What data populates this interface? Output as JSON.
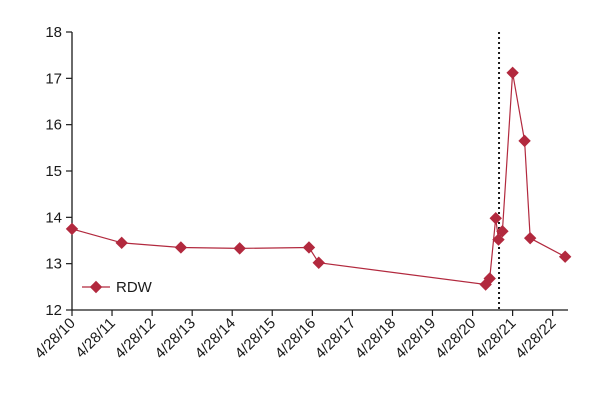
{
  "chart_data": {
    "type": "line",
    "title": "",
    "xlabel": "",
    "ylabel": "",
    "x_axis": {
      "type": "date",
      "min": "2010-04-28",
      "max": "2022-09-15",
      "ticks": [
        {
          "date": "2010-04-28",
          "label": "4/28/10"
        },
        {
          "date": "2011-04-28",
          "label": "4/28/11"
        },
        {
          "date": "2012-04-28",
          "label": "4/28/12"
        },
        {
          "date": "2013-04-28",
          "label": "4/28/13"
        },
        {
          "date": "2014-04-28",
          "label": "4/28/14"
        },
        {
          "date": "2015-04-28",
          "label": "4/28/15"
        },
        {
          "date": "2016-04-28",
          "label": "4/28/16"
        },
        {
          "date": "2017-04-28",
          "label": "4/28/17"
        },
        {
          "date": "2018-04-28",
          "label": "4/28/18"
        },
        {
          "date": "2019-04-28",
          "label": "4/28/19"
        },
        {
          "date": "2020-04-28",
          "label": "4/28/20"
        },
        {
          "date": "2021-04-28",
          "label": "4/28/21"
        },
        {
          "date": "2022-04-28",
          "label": "4/28/22"
        }
      ]
    },
    "y_axis": {
      "min": 12,
      "max": 18,
      "ticks": [
        {
          "value": 12,
          "label": "12"
        },
        {
          "value": 13,
          "label": "13"
        },
        {
          "value": 14,
          "label": "14"
        },
        {
          "value": 15,
          "label": "15"
        },
        {
          "value": 16,
          "label": "16"
        },
        {
          "value": 17,
          "label": "17"
        },
        {
          "value": 18,
          "label": "18"
        }
      ]
    },
    "grid": false,
    "legend": {
      "position": "bottom-left"
    },
    "reference_line": {
      "date": "2020-12-25",
      "style": "dotted",
      "color": "#1a1a1a"
    },
    "series": [
      {
        "name": "RDW",
        "color": "#b2293e",
        "marker": "diamond",
        "points": [
          {
            "x": "2010-04-28",
            "y": 13.75
          },
          {
            "x": "2011-07-25",
            "y": 13.45
          },
          {
            "x": "2013-01-15",
            "y": 13.35
          },
          {
            "x": "2014-07-05",
            "y": 13.33
          },
          {
            "x": "2016-03-28",
            "y": 13.35
          },
          {
            "x": "2016-06-25",
            "y": 13.02
          },
          {
            "x": "2020-08-25",
            "y": 12.55
          },
          {
            "x": "2020-10-01",
            "y": 12.68
          },
          {
            "x": "2020-11-25",
            "y": 13.98
          },
          {
            "x": "2020-12-20",
            "y": 13.52
          },
          {
            "x": "2021-01-25",
            "y": 13.7
          },
          {
            "x": "2021-04-28",
            "y": 17.12
          },
          {
            "x": "2021-08-15",
            "y": 15.65
          },
          {
            "x": "2021-10-05",
            "y": 13.55
          },
          {
            "x": "2022-08-20",
            "y": 13.15
          }
        ]
      }
    ]
  }
}
